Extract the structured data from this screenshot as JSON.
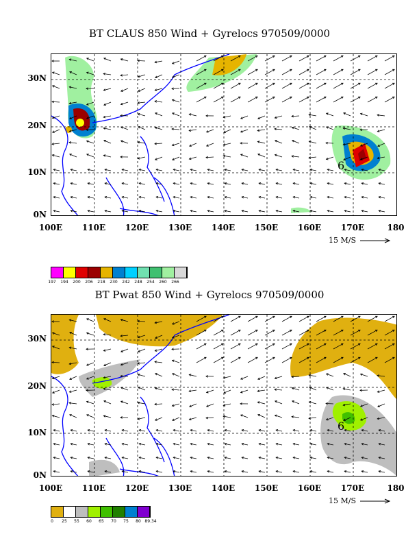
{
  "top": {
    "title": "BT CLAUS 850 Wind + Gyrelocs 970509/0000",
    "colorbar": {
      "labels": [
        "197",
        "194",
        "200",
        "206",
        "218",
        "230",
        "242",
        "248",
        "254",
        "260",
        "266"
      ],
      "colors": [
        "#ff00ff",
        "#ffff00",
        "#e00000",
        "#9b0000",
        "#e6b400",
        "#0080d0",
        "#00d0ff",
        "#70e0b0",
        "#40c070",
        "#a0f0a0",
        "#d8d8d8"
      ]
    }
  },
  "bottom": {
    "title": "BT Pwat 850 Wind + Gyrelocs 970509/0000",
    "colorbar": {
      "labels": [
        "0",
        "25",
        "55",
        "60",
        "65",
        "70",
        "75",
        "80",
        "89.34"
      ],
      "colors": [
        "#e0b010",
        "#ffffff",
        "#bebebe",
        "#a0f000",
        "#40c000",
        "#208000",
        "#0080d0",
        "#8000d0"
      ]
    }
  },
  "axes": {
    "lat_labels": [
      "30N",
      "20N",
      "10N",
      "0N"
    ],
    "lon_labels": [
      "100E",
      "110E",
      "120E",
      "130E",
      "140E",
      "150E",
      "160E",
      "170E",
      "180"
    ],
    "ref_vector": "15 M/S"
  },
  "gyre_marker": "6",
  "colors": {
    "coast": "#0000ff",
    "grid": "#000000"
  }
}
